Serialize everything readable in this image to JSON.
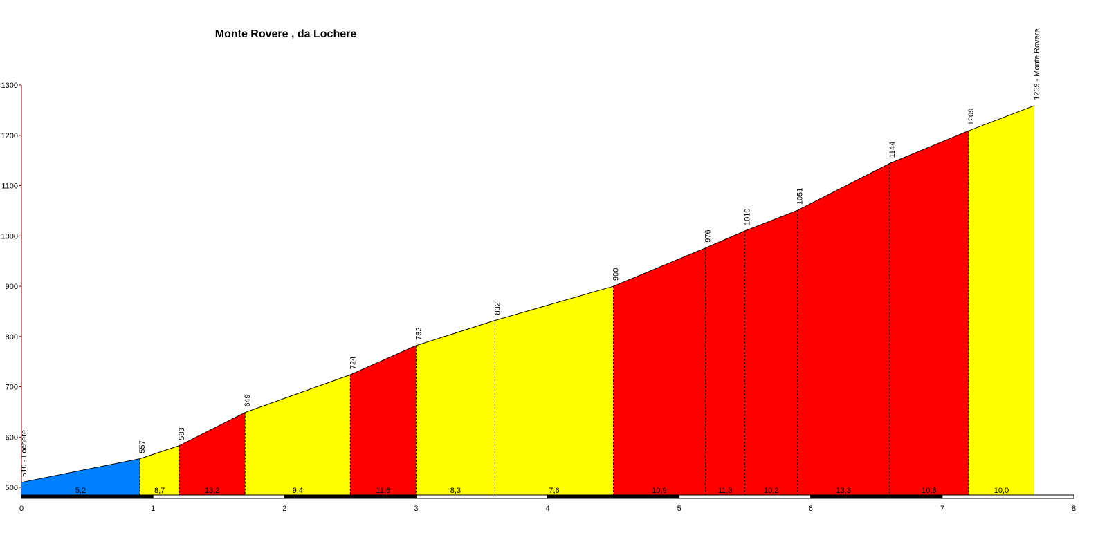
{
  "chart_data": {
    "type": "profile",
    "title": "Monte Rovere , da Lochere",
    "x": [
      0,
      0.9,
      1.2,
      1.7,
      2.5,
      3.0,
      3.6,
      4.5,
      5.2,
      5.5,
      5.9,
      6.6,
      7.2,
      7.7
    ],
    "values": [
      510,
      557,
      583,
      649,
      724,
      782,
      832,
      900,
      976,
      1010,
      1051,
      1144,
      1209,
      1259
    ],
    "value_labels": [
      "510 - Lochere",
      "557",
      "583",
      "649",
      "724",
      "782",
      "832",
      "900",
      "976",
      "1010",
      "1051",
      "1144",
      "1209",
      "1259 - Monte Rovere"
    ],
    "gradients": [
      5.2,
      8.7,
      13.2,
      9.4,
      11.6,
      8.3,
      7.6,
      10.9,
      11.3,
      10.2,
      13.3,
      10.8,
      10.0
    ],
    "gradient_labels": [
      "5,2",
      "8,7",
      "13,2",
      "9,4",
      "11,6",
      "8,3",
      "7,6",
      "10,9",
      "11,3",
      "10,2",
      "13,3",
      "10,8",
      "10,0"
    ],
    "colors": [
      "#0080ff",
      "#ffff00",
      "#ff0000",
      "#ffff00",
      "#ff0000",
      "#ffff00",
      "#ffff00",
      "#ff0000",
      "#ff0000",
      "#ff0000",
      "#ff0000",
      "#ff0000",
      "#ffff00"
    ],
    "xlim": [
      0,
      8
    ],
    "xticks": [
      0,
      1,
      2,
      3,
      4,
      5,
      6,
      7,
      8
    ],
    "ylim": [
      485,
      1300
    ],
    "yticks": [
      500,
      600,
      700,
      800,
      900,
      1000,
      1100,
      1200,
      1300
    ]
  }
}
